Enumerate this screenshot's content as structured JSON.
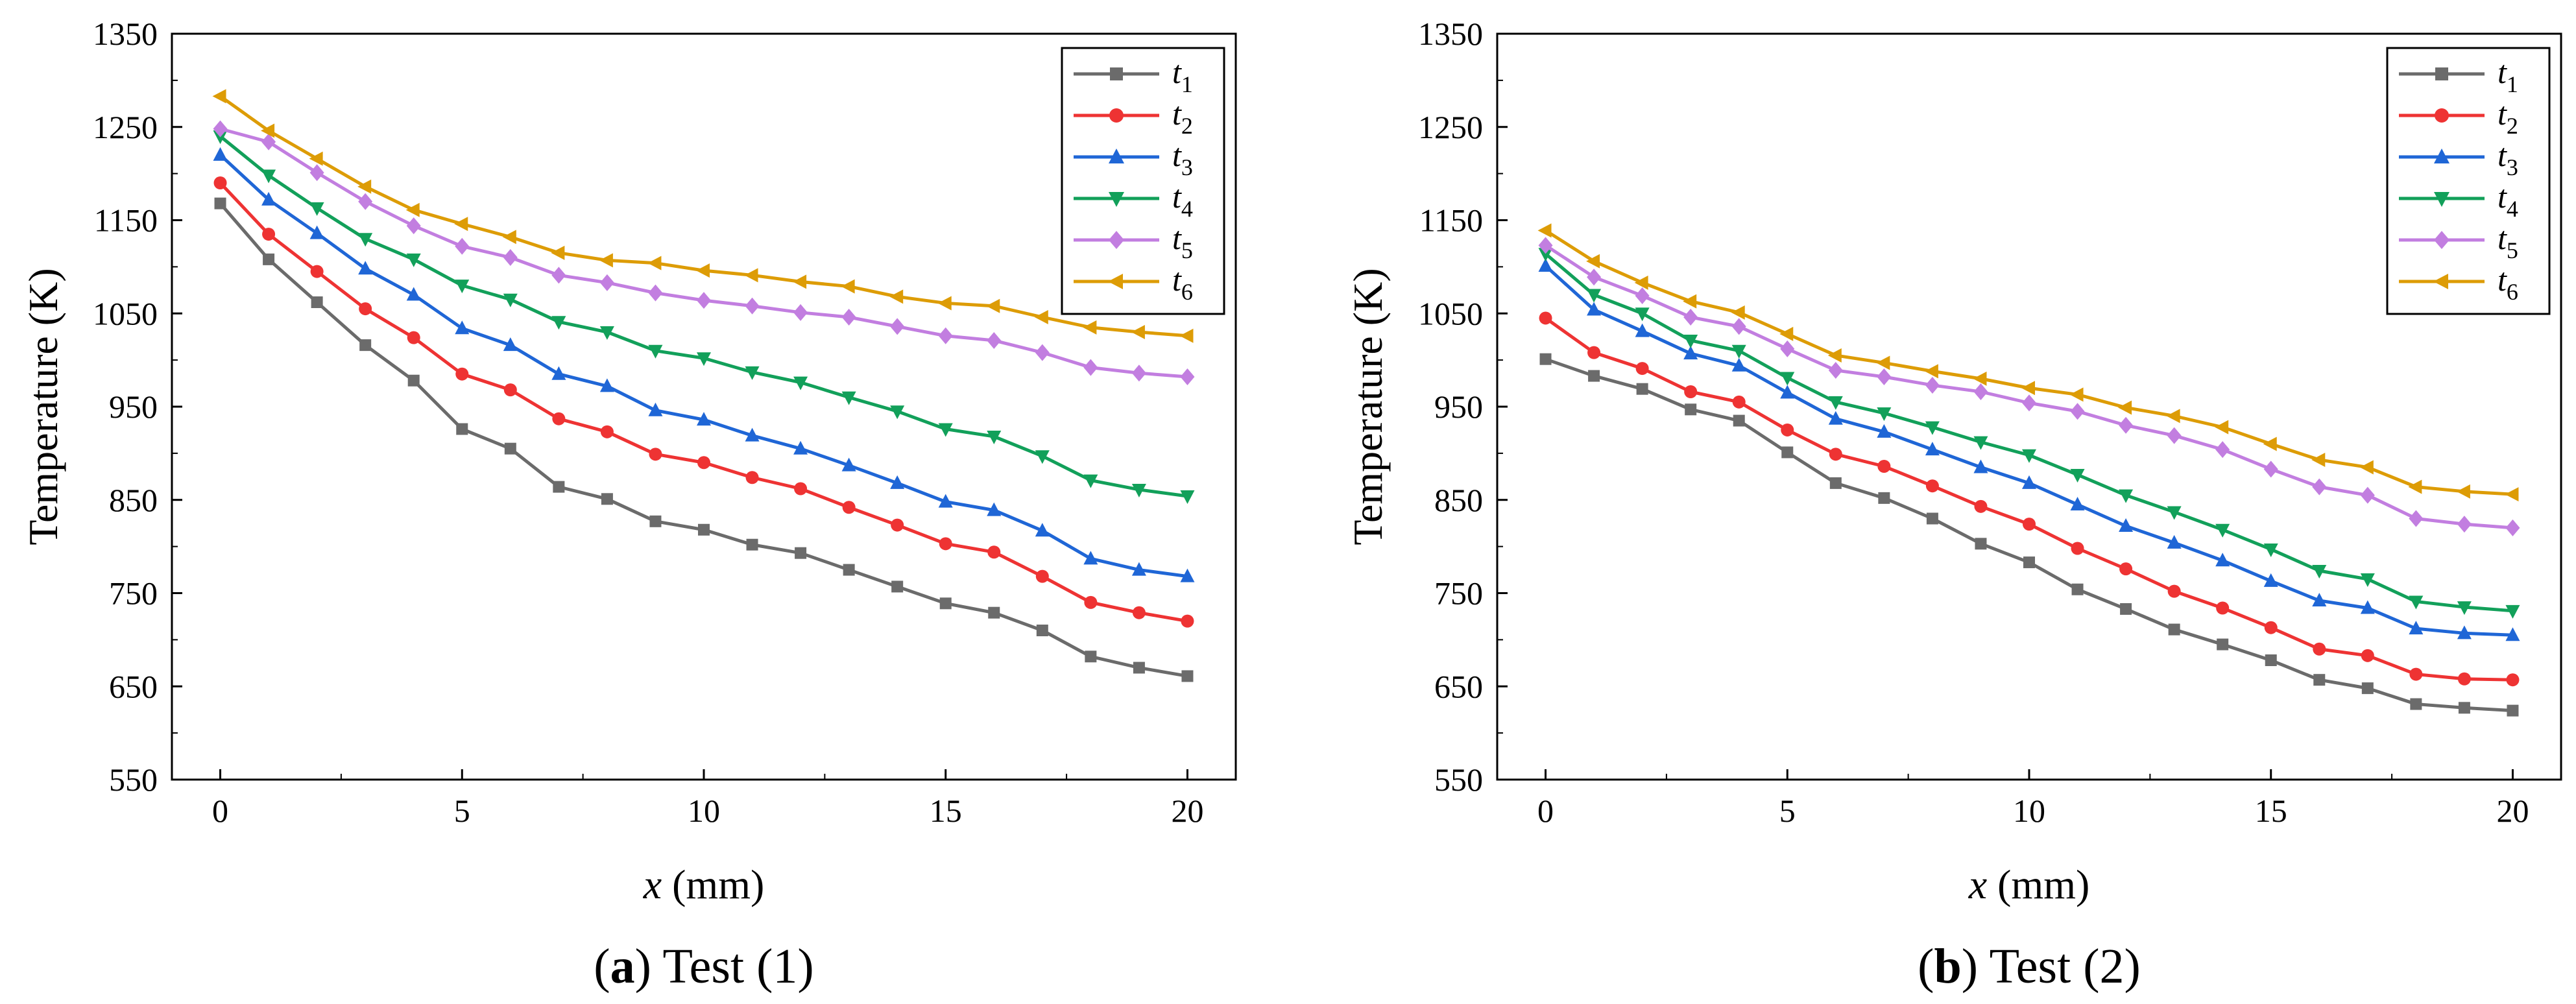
{
  "chart_data": [
    {
      "id": "a",
      "type": "line",
      "caption_letter": "a",
      "caption_text": " Test (1)",
      "xlabel_var": "x",
      "xlabel_unit": " (mm)",
      "ylabel": "Temperature (K)",
      "xlim": [
        -1,
        21
      ],
      "ylim": [
        550,
        1350
      ],
      "xticks": [
        0,
        5,
        10,
        15,
        20
      ],
      "yticks": [
        550,
        650,
        750,
        850,
        950,
        1050,
        1150,
        1250,
        1350
      ],
      "legend_position": "top-right",
      "x": [
        0,
        1,
        2,
        3,
        4,
        5,
        6,
        7,
        8,
        9,
        10,
        11,
        12,
        13,
        14,
        15,
        16,
        17,
        18,
        19,
        20
      ],
      "series": [
        {
          "name": "t",
          "sub": "1",
          "color": "#6b6b6b",
          "marker": "square",
          "values": [
            1168,
            1108,
            1062,
            1016,
            978,
            926,
            905,
            864,
            851,
            827,
            818,
            802,
            793,
            775,
            757,
            739,
            729,
            710,
            682,
            670,
            661
          ]
        },
        {
          "name": "t",
          "sub": "2",
          "color": "#ee3333",
          "marker": "circle",
          "values": [
            1190,
            1135,
            1095,
            1055,
            1024,
            985,
            968,
            937,
            923,
            899,
            890,
            874,
            862,
            842,
            823,
            803,
            794,
            768,
            740,
            729,
            720
          ]
        },
        {
          "name": "t",
          "sub": "3",
          "color": "#1f66d6",
          "marker": "triangle-up",
          "values": [
            1220,
            1172,
            1136,
            1098,
            1070,
            1034,
            1016,
            985,
            972,
            946,
            936,
            919,
            905,
            887,
            868,
            848,
            839,
            817,
            787,
            775,
            768
          ]
        },
        {
          "name": "t",
          "sub": "4",
          "color": "#12a05a",
          "marker": "triangle-down",
          "values": [
            1240,
            1198,
            1163,
            1130,
            1108,
            1080,
            1065,
            1041,
            1030,
            1010,
            1002,
            987,
            976,
            960,
            945,
            926,
            918,
            897,
            871,
            861,
            854
          ]
        },
        {
          "name": "t",
          "sub": "5",
          "color": "#c27ee0",
          "marker": "diamond",
          "values": [
            1248,
            1234,
            1201,
            1170,
            1144,
            1122,
            1110,
            1091,
            1083,
            1072,
            1064,
            1058,
            1051,
            1046,
            1036,
            1026,
            1021,
            1008,
            992,
            986,
            982
          ]
        },
        {
          "name": "t",
          "sub": "6",
          "color": "#dd9c06",
          "marker": "triangle-left",
          "values": [
            1283,
            1246,
            1216,
            1186,
            1161,
            1146,
            1132,
            1115,
            1107,
            1104,
            1096,
            1091,
            1084,
            1079,
            1068,
            1061,
            1058,
            1046,
            1035,
            1030,
            1026
          ]
        }
      ]
    },
    {
      "id": "b",
      "type": "line",
      "caption_letter": "b",
      "caption_text": " Test (2)",
      "xlabel_var": "x",
      "xlabel_unit": " (mm)",
      "ylabel": "Temperature (K)",
      "xlim": [
        -1,
        21
      ],
      "ylim": [
        550,
        1350
      ],
      "xticks": [
        0,
        5,
        10,
        15,
        20
      ],
      "yticks": [
        550,
        650,
        750,
        850,
        950,
        1050,
        1150,
        1250,
        1350
      ],
      "legend_position": "top-right",
      "x": [
        0,
        1,
        2,
        3,
        4,
        5,
        6,
        7,
        8,
        9,
        10,
        11,
        12,
        13,
        14,
        15,
        16,
        17,
        18,
        19,
        20
      ],
      "series": [
        {
          "name": "t",
          "sub": "1",
          "color": "#6b6b6b",
          "marker": "square",
          "values": [
            1001,
            983,
            969,
            947,
            935,
            901,
            868,
            852,
            830,
            803,
            783,
            754,
            733,
            711,
            695,
            678,
            657,
            648,
            631,
            627,
            624
          ]
        },
        {
          "name": "t",
          "sub": "2",
          "color": "#ee3333",
          "marker": "circle",
          "values": [
            1045,
            1008,
            991,
            966,
            955,
            925,
            899,
            886,
            865,
            843,
            824,
            798,
            776,
            752,
            734,
            713,
            690,
            683,
            663,
            658,
            657
          ]
        },
        {
          "name": "t",
          "sub": "3",
          "color": "#1f66d6",
          "marker": "triangle-up",
          "values": [
            1101,
            1054,
            1031,
            1007,
            994,
            965,
            937,
            923,
            904,
            885,
            868,
            845,
            822,
            804,
            785,
            763,
            742,
            734,
            712,
            707,
            705
          ]
        },
        {
          "name": "t",
          "sub": "4",
          "color": "#12a05a",
          "marker": "triangle-down",
          "values": [
            1114,
            1070,
            1050,
            1021,
            1010,
            981,
            955,
            943,
            928,
            912,
            898,
            877,
            855,
            837,
            818,
            797,
            774,
            765,
            741,
            735,
            731
          ]
        },
        {
          "name": "t",
          "sub": "5",
          "color": "#c27ee0",
          "marker": "diamond",
          "values": [
            1123,
            1089,
            1069,
            1046,
            1036,
            1012,
            989,
            982,
            973,
            966,
            954,
            945,
            930,
            919,
            904,
            883,
            864,
            855,
            830,
            824,
            820
          ]
        },
        {
          "name": "t",
          "sub": "6",
          "color": "#dd9c06",
          "marker": "triangle-left",
          "values": [
            1139,
            1106,
            1083,
            1063,
            1051,
            1028,
            1005,
            997,
            988,
            980,
            970,
            963,
            949,
            940,
            928,
            910,
            893,
            885,
            864,
            859,
            856
          ]
        }
      ]
    }
  ]
}
